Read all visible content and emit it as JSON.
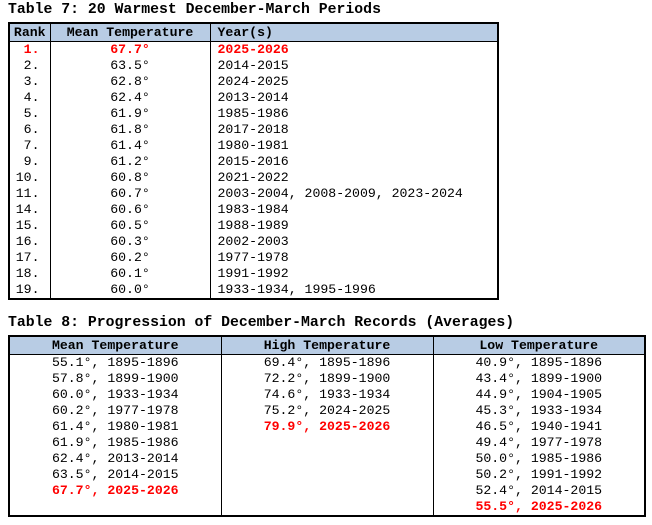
{
  "colors": {
    "header_bg": "#b8cce4",
    "highlight": "#ff0000",
    "border": "#000000",
    "text": "#000000",
    "background": "#ffffff"
  },
  "table7": {
    "title": "Table 7: 20 Warmest December-March Periods",
    "headers": [
      "Rank",
      "Mean Temperature",
      "Year(s)"
    ],
    "rows": [
      {
        "rank": "1.",
        "temp": "67.7°",
        "years": "2025-2026",
        "highlight": true
      },
      {
        "rank": "2.",
        "temp": "63.5°",
        "years": "2014-2015",
        "highlight": false
      },
      {
        "rank": "3.",
        "temp": "62.8°",
        "years": "2024-2025",
        "highlight": false
      },
      {
        "rank": "4.",
        "temp": "62.4°",
        "years": "2013-2014",
        "highlight": false
      },
      {
        "rank": "5.",
        "temp": "61.9°",
        "years": "1985-1986",
        "highlight": false
      },
      {
        "rank": "6.",
        "temp": "61.8°",
        "years": "2017-2018",
        "highlight": false
      },
      {
        "rank": "7.",
        "temp": "61.4°",
        "years": "1980-1981",
        "highlight": false
      },
      {
        "rank": "9.",
        "temp": "61.2°",
        "years": "2015-2016",
        "highlight": false
      },
      {
        "rank": "10.",
        "temp": "60.8°",
        "years": "2021-2022",
        "highlight": false
      },
      {
        "rank": "11.",
        "temp": "60.7°",
        "years": "2003-2004, 2008-2009, 2023-2024",
        "highlight": false
      },
      {
        "rank": "14.",
        "temp": "60.6°",
        "years": "1983-1984",
        "highlight": false
      },
      {
        "rank": "15.",
        "temp": "60.5°",
        "years": "1988-1989",
        "highlight": false
      },
      {
        "rank": "16.",
        "temp": "60.3°",
        "years": "2002-2003",
        "highlight": false
      },
      {
        "rank": "17.",
        "temp": "60.2°",
        "years": "1977-1978",
        "highlight": false
      },
      {
        "rank": "18.",
        "temp": "60.1°",
        "years": "1991-1992",
        "highlight": false
      },
      {
        "rank": "19.",
        "temp": "60.0°",
        "years": "1933-1934, 1995-1996",
        "highlight": false
      }
    ]
  },
  "table8": {
    "title": "Table 8: Progression of December-March Records (Averages)",
    "headers": [
      "Mean Temperature",
      "High Temperature",
      "Low Temperature"
    ],
    "rows": [
      {
        "mean": {
          "text": "55.1°, 1895-1896",
          "highlight": false
        },
        "high": {
          "text": "69.4°, 1895-1896",
          "highlight": false
        },
        "low": {
          "text": "40.9°, 1895-1896",
          "highlight": false
        }
      },
      {
        "mean": {
          "text": "57.8°, 1899-1900",
          "highlight": false
        },
        "high": {
          "text": "72.2°, 1899-1900",
          "highlight": false
        },
        "low": {
          "text": "43.4°, 1899-1900",
          "highlight": false
        }
      },
      {
        "mean": {
          "text": "60.0°, 1933-1934",
          "highlight": false
        },
        "high": {
          "text": "74.6°, 1933-1934",
          "highlight": false
        },
        "low": {
          "text": "44.9°, 1904-1905",
          "highlight": false
        }
      },
      {
        "mean": {
          "text": "60.2°, 1977-1978",
          "highlight": false
        },
        "high": {
          "text": "75.2°, 2024-2025",
          "highlight": false
        },
        "low": {
          "text": "45.3°, 1933-1934",
          "highlight": false
        }
      },
      {
        "mean": {
          "text": "61.4°, 1980-1981",
          "highlight": false
        },
        "high": {
          "text": "79.9°, 2025-2026",
          "highlight": true
        },
        "low": {
          "text": "46.5°, 1940-1941",
          "highlight": false
        }
      },
      {
        "mean": {
          "text": "61.9°, 1985-1986",
          "highlight": false
        },
        "high": {
          "text": "",
          "highlight": false
        },
        "low": {
          "text": "49.4°, 1977-1978",
          "highlight": false
        }
      },
      {
        "mean": {
          "text": "62.4°, 2013-2014",
          "highlight": false
        },
        "high": {
          "text": "",
          "highlight": false
        },
        "low": {
          "text": "50.0°, 1985-1986",
          "highlight": false
        }
      },
      {
        "mean": {
          "text": "63.5°, 2014-2015",
          "highlight": false
        },
        "high": {
          "text": "",
          "highlight": false
        },
        "low": {
          "text": "50.2°, 1991-1992",
          "highlight": false
        }
      },
      {
        "mean": {
          "text": "67.7°, 2025-2026",
          "highlight": true
        },
        "high": {
          "text": "",
          "highlight": false
        },
        "low": {
          "text": "52.4°, 2014-2015",
          "highlight": false
        }
      },
      {
        "mean": {
          "text": "",
          "highlight": false
        },
        "high": {
          "text": "",
          "highlight": false
        },
        "low": {
          "text": "55.5°, 2025-2026",
          "highlight": true
        }
      }
    ]
  }
}
